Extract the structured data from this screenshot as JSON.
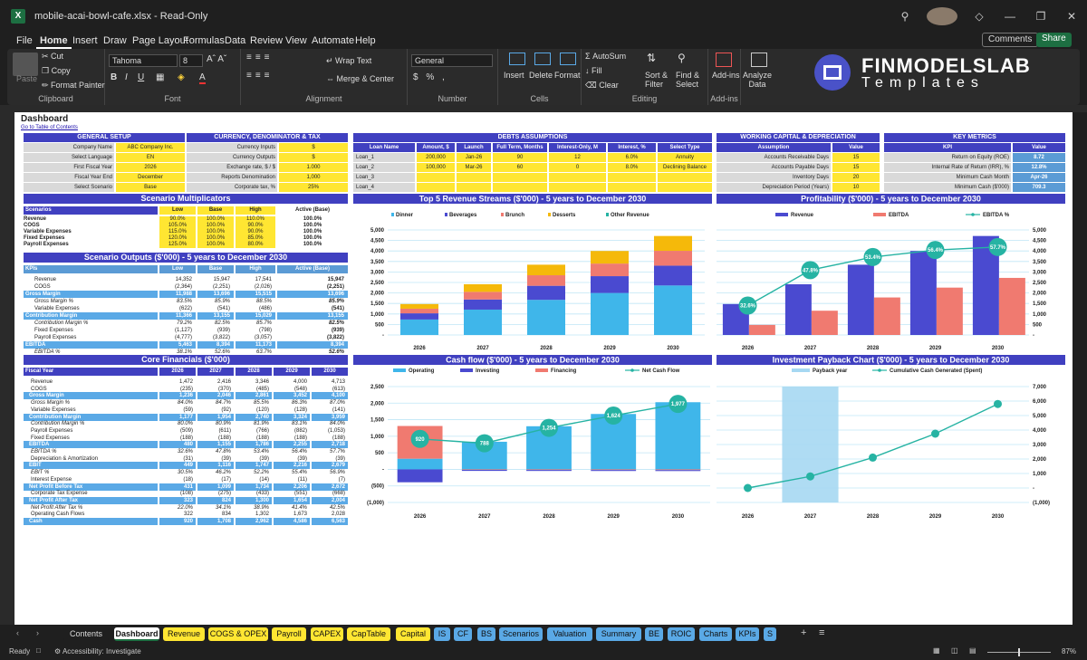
{
  "window": {
    "filename": "mobile-acai-bowl-cafe.xlsx",
    "mode": "Read-Only"
  },
  "menu": [
    "File",
    "Home",
    "Insert",
    "Draw",
    "Page Layout",
    "Formulas",
    "Data",
    "Review",
    "View",
    "Automate",
    "Help"
  ],
  "menu_right": {
    "comments": "Comments",
    "share": "Share"
  },
  "ribbon": {
    "paste": "Paste",
    "cut": "Cut",
    "copy": "Copy",
    "format_painter": "Format Painter",
    "clipboard": "Clipboard",
    "font_name": "Tahoma",
    "font_size": "8",
    "font": "Font",
    "wrap": "Wrap Text",
    "merge": "Merge & Center",
    "alignment": "Alignment",
    "numfmt": "General",
    "number": "Number",
    "insert": "Insert",
    "delete": "Delete",
    "format": "Format",
    "cells": "Cells",
    "autosum": "AutoSum",
    "fill": "Fill",
    "clear": "Clear",
    "sort": "Sort &",
    "filter": "Filter",
    "find": "Find &",
    "select": "Select",
    "editing": "Editing",
    "addins": "Add-ins",
    "addins_grp": "Add-ins",
    "analyze": "Analyze",
    "data": "Data"
  },
  "logo": {
    "line1": "FINMODELSLAB",
    "line2": "Templates"
  },
  "sheet": {
    "title": "Dashboard",
    "link": "Go to Table of Contents",
    "general": {
      "header": "GENERAL SETUP",
      "rows": [
        [
          "Company Name",
          "ABC Company Inc."
        ],
        [
          "Select Language",
          "EN"
        ],
        [
          "First Fiscal Year",
          "2026"
        ],
        [
          "Fiscal Year End",
          "December"
        ],
        [
          "Select Scenario",
          "Base"
        ]
      ]
    },
    "currency": {
      "header": "CURRENCY, DENOMINATOR & TAX",
      "rows": [
        [
          "Currency Inputs",
          "$"
        ],
        [
          "Currency Outputs",
          "$"
        ],
        [
          "Exchange rate, $ / $",
          "1.000"
        ],
        [
          "Reports Denomination",
          "1,000"
        ],
        [
          "Corporate tax, %",
          "25%"
        ]
      ]
    },
    "debts": {
      "header": "DEBTS ASSUMPTIONS",
      "cols": [
        "Loan Name",
        "Amount, $",
        "Launch",
        "Full Term, Months",
        "Interest-Only, M",
        "Interest, %",
        "Select Type"
      ],
      "rows": [
        [
          "Loan_1",
          "200,000",
          "Jan-26",
          "90",
          "12",
          "6.0%",
          "Annuity"
        ],
        [
          "Loan_2",
          "100,000",
          "Mar-26",
          "60",
          "0",
          "8.0%",
          "Declining Balance"
        ],
        [
          "Loan_3",
          "",
          "",
          "",
          "",
          "",
          ""
        ],
        [
          "Loan_4",
          "",
          "",
          "",
          "",
          "",
          ""
        ]
      ]
    },
    "wc": {
      "header": "WORKING CAPITAL & DEPRECIATION",
      "cols": [
        "Assumption",
        "Value"
      ],
      "rows": [
        [
          "Accounts Receivable Days",
          "15"
        ],
        [
          "Accounts Payable Days",
          "15"
        ],
        [
          "Inventory Days",
          "20"
        ],
        [
          "Depreciation Period (Years)",
          "10"
        ]
      ]
    },
    "metrics": {
      "header": "KEY METRICS",
      "cols": [
        "KPI",
        "Value"
      ],
      "rows": [
        [
          "Return on Equity (ROE)",
          "8.72"
        ],
        [
          "Internal Rate of Return (IRR), %",
          "12.8%"
        ],
        [
          "Minimum Cash Month",
          "Apr-26"
        ],
        [
          "Minimum Cash ($'000)",
          "709.3"
        ]
      ]
    },
    "multipliers": {
      "header": "Scenario Multiplicators",
      "cols": [
        "Scenarios",
        "Low",
        "Base",
        "High",
        "Active (Base)"
      ],
      "rows": [
        [
          "Revenue",
          "90.0%",
          "100.0%",
          "110.0%",
          "100.0%"
        ],
        [
          "COGS",
          "105.0%",
          "100.0%",
          "90.0%",
          "100.0%"
        ],
        [
          "Variable Expenses",
          "115.0%",
          "100.0%",
          "90.0%",
          "100.0%"
        ],
        [
          "Fixed Expenses",
          "120.0%",
          "100.0%",
          "85.0%",
          "100.0%"
        ],
        [
          "Payroll Expenses",
          "125.0%",
          "100.0%",
          "80.0%",
          "100.0%"
        ]
      ]
    },
    "outputs": {
      "header": "Scenario Outputs ($'000) - 5 years to December 2030",
      "cols": [
        "KPIs",
        "Low",
        "Base",
        "High",
        "Active (Base)"
      ],
      "rows": [
        {
          "v": [
            "Revenue",
            "14,352",
            "15,947",
            "17,541",
            "15,947"
          ],
          "s": "n"
        },
        {
          "v": [
            "COGS",
            "(2,364)",
            "(2,251)",
            "(2,026)",
            "(2,251)"
          ],
          "s": "n"
        },
        {
          "v": [
            "Gross Margin",
            "11,988",
            "13,696",
            "15,515",
            "13,696"
          ],
          "s": "b"
        },
        {
          "v": [
            "Gross Margin %",
            "83.5%",
            "85.9%",
            "88.5%",
            "85.9%"
          ],
          "s": "i"
        },
        {
          "v": [
            "Variable Expenses",
            "(622)",
            "(541)",
            "(486)",
            "(541)"
          ],
          "s": "n"
        },
        {
          "v": [
            "Contribution Margin",
            "11,366",
            "13,155",
            "15,029",
            "13,155"
          ],
          "s": "b"
        },
        {
          "v": [
            "Contribution Margin %",
            "79.2%",
            "82.5%",
            "85.7%",
            "82.5%"
          ],
          "s": "i"
        },
        {
          "v": [
            "Fixed Expenses",
            "(1,127)",
            "(939)",
            "(798)",
            "(939)"
          ],
          "s": "n"
        },
        {
          "v": [
            "Payroll Expenses",
            "(4,777)",
            "(3,822)",
            "(3,057)",
            "(3,822)"
          ],
          "s": "n"
        },
        {
          "v": [
            "EBITDA",
            "5,463",
            "8,394",
            "11,173",
            "8,394"
          ],
          "s": "b"
        },
        {
          "v": [
            "EBITDA %",
            "38.1%",
            "52.6%",
            "63.7%",
            "52.6%"
          ],
          "s": "i"
        }
      ]
    },
    "core": {
      "header": "Core Financials ($'000)",
      "cols": [
        "Fiscal Year",
        "2026",
        "2027",
        "2028",
        "2029",
        "2030"
      ],
      "rows": [
        {
          "v": [
            "Revenue",
            "1,472",
            "2,416",
            "3,346",
            "4,000",
            "4,713"
          ],
          "s": "n"
        },
        {
          "v": [
            "COGS",
            "(235)",
            "(370)",
            "(485)",
            "(548)",
            "(613)"
          ],
          "s": "n"
        },
        {
          "v": [
            "Gross Margin",
            "1,236",
            "2,046",
            "2,861",
            "3,452",
            "4,100"
          ],
          "s": "b"
        },
        {
          "v": [
            "Gross Margin %",
            "84.0%",
            "84.7%",
            "85.5%",
            "86.3%",
            "87.0%"
          ],
          "s": "i"
        },
        {
          "v": [
            "Variable Expenses",
            "(59)",
            "(92)",
            "(120)",
            "(128)",
            "(141)"
          ],
          "s": "n"
        },
        {
          "v": [
            "Contribution Margin",
            "1,177",
            "1,954",
            "2,740",
            "3,324",
            "3,959"
          ],
          "s": "b"
        },
        {
          "v": [
            "Contribution Margin %",
            "80.0%",
            "80.9%",
            "81.9%",
            "83.1%",
            "84.0%"
          ],
          "s": "i"
        },
        {
          "v": [
            "Payroll Expenses",
            "(509)",
            "(611)",
            "(766)",
            "(882)",
            "(1,053)"
          ],
          "s": "n"
        },
        {
          "v": [
            "Fixed Expenses",
            "(188)",
            "(188)",
            "(188)",
            "(188)",
            "(188)"
          ],
          "s": "n"
        },
        {
          "v": [
            "EBITDA",
            "480",
            "1,155",
            "1,786",
            "2,255",
            "2,718"
          ],
          "s": "b"
        },
        {
          "v": [
            "EBITDA %",
            "32.6%",
            "47.8%",
            "53.4%",
            "56.4%",
            "57.7%"
          ],
          "s": "i"
        },
        {
          "v": [
            "Depreciation & Amortization",
            "(31)",
            "(39)",
            "(39)",
            "(39)",
            "(39)"
          ],
          "s": "n"
        },
        {
          "v": [
            "EBIT",
            "449",
            "1,116",
            "1,747",
            "2,216",
            "2,679"
          ],
          "s": "b"
        },
        {
          "v": [
            "EBIT %",
            "30.5%",
            "46.2%",
            "52.2%",
            "55.4%",
            "56.9%"
          ],
          "s": "i"
        },
        {
          "v": [
            "Interest Expense",
            "(18)",
            "(17)",
            "(14)",
            "(11)",
            "(7)"
          ],
          "s": "n"
        },
        {
          "v": [
            "Net Profit Before Tax",
            "431",
            "1,099",
            "1,734",
            "2,206",
            "2,672"
          ],
          "s": "b"
        },
        {
          "v": [
            "Corporate Tax Expense",
            "(108)",
            "(275)",
            "(433)",
            "(551)",
            "(668)"
          ],
          "s": "n"
        },
        {
          "v": [
            "Net Profit After Tax",
            "323",
            "824",
            "1,300",
            "1,654",
            "2,004"
          ],
          "s": "b"
        },
        {
          "v": [
            "Net Profit After Tax %",
            "22.0%",
            "34.1%",
            "38.9%",
            "41.4%",
            "42.5%"
          ],
          "s": "i"
        },
        {
          "v": [
            "Operating Cash Flows",
            "322",
            "834",
            "1,302",
            "1,673",
            "2,028"
          ],
          "s": "n"
        },
        {
          "v": [
            "Cash",
            "920",
            "1,708",
            "2,962",
            "4,586",
            "6,563"
          ],
          "s": "b"
        }
      ]
    }
  },
  "chart_data": [
    {
      "type": "bar",
      "title": "Top 5 Revenue Streams ($'000) - 5 years to December 2030",
      "categories": [
        "2026",
        "2027",
        "2028",
        "2029",
        "2030"
      ],
      "series": [
        {
          "name": "Dinner",
          "values": [
            736,
            1208,
            1673,
            2000,
            2357
          ],
          "color": "#3fb6ea"
        },
        {
          "name": "Beverages",
          "values": [
            295,
            483,
            669,
            800,
            943
          ],
          "color": "#4a4ad0"
        },
        {
          "name": "Brunch",
          "values": [
            221,
            362,
            502,
            600,
            707
          ],
          "color": "#f07a70"
        },
        {
          "name": "Desserts",
          "values": [
            221,
            363,
            502,
            600,
            706
          ],
          "color": "#f5b90a"
        },
        {
          "name": "Other Revenue",
          "values": [
            0,
            0,
            0,
            0,
            0
          ],
          "color": "#26b3a3"
        }
      ],
      "yticks": [
        "5,000",
        "4,500",
        "4,000",
        "3,500",
        "3,000",
        "2,500",
        "2,000",
        "1,500",
        "1,000",
        "500",
        "-"
      ],
      "ylim": [
        0,
        5000
      ]
    },
    {
      "type": "bar",
      "title": "Profitability ($'000) - 5 years to December 2030",
      "categories": [
        "2026",
        "2027",
        "2028",
        "2029",
        "2030"
      ],
      "series": [
        {
          "name": "Revenue",
          "values": [
            1472,
            2416,
            3346,
            4000,
            4713
          ],
          "color": "#4a4ad0"
        },
        {
          "name": "EBITDA",
          "values": [
            480,
            1155,
            1786,
            2255,
            2718
          ],
          "color": "#f07a70"
        },
        {
          "name": "EBITDA %",
          "values": [
            32.6,
            47.8,
            53.4,
            56.4,
            57.7
          ],
          "labels": [
            "32.6%",
            "47.8%",
            "53.4%",
            "56.4%",
            "57.7%"
          ],
          "color": "#26b3a3"
        }
      ],
      "yticks": [
        "5,000",
        "4,500",
        "4,000",
        "3,500",
        "3,000",
        "2,500",
        "2,000",
        "1,500",
        "1,000",
        "500",
        "-"
      ],
      "ylim": [
        0,
        5000
      ]
    },
    {
      "type": "bar",
      "title": "Cash flow ($'000) - 5 years to December 2030",
      "categories": [
        "2026",
        "2027",
        "2028",
        "2029",
        "2030"
      ],
      "series": [
        {
          "name": "Operating",
          "values": [
            322,
            834,
            1302,
            1673,
            2028
          ],
          "color": "#3fb6ea"
        },
        {
          "name": "Investing",
          "values": [
            -390,
            -30,
            -30,
            -30,
            -30
          ],
          "color": "#4a4ad0"
        },
        {
          "name": "Financing",
          "values": [
            988,
            -16,
            -18,
            -19,
            -21
          ],
          "color": "#f07a70"
        },
        {
          "name": "Net Cash Flow",
          "values": [
            920,
            788,
            1254,
            1624,
            1977
          ],
          "labels": [
            "920",
            "788",
            "1,254",
            "1,624",
            "1,977"
          ],
          "color": "#26b3a3"
        }
      ],
      "yticks": [
        "2,500",
        "2,000",
        "1,500",
        "1,000",
        "500",
        "-",
        "(500)",
        "(1,000)"
      ],
      "ylim": [
        -1000,
        2500
      ]
    },
    {
      "type": "bar",
      "title": "Investment Payback Chart ($'000) - 5 years to December 2030",
      "categories": [
        "2026",
        "2027",
        "2028",
        "2029",
        "2030"
      ],
      "series": [
        {
          "name": "Payback year",
          "values": [
            0,
            1,
            0,
            0,
            0
          ],
          "color": "#a6d8f2"
        },
        {
          "name": "Cumulative Cash Generated (Spent)",
          "values": [
            0,
            800,
            2100,
            3750,
            5800
          ],
          "color": "#26b3a3"
        }
      ],
      "yticks": [
        "7,000",
        "6,000",
        "5,000",
        "4,000",
        "3,000",
        "2,000",
        "1,000",
        "-",
        "(1,000)"
      ],
      "ylim": [
        -1000,
        7000
      ]
    }
  ],
  "tabs": [
    {
      "label": "Contents",
      "color": "#1f1f1f",
      "fg": "#ddd"
    },
    {
      "label": "Dashboard",
      "color": "#ffffff",
      "fg": "#111"
    },
    {
      "label": "Revenue",
      "color": "#ffe632",
      "fg": "#111"
    },
    {
      "label": "COGS & OPEX",
      "color": "#ffe632",
      "fg": "#111"
    },
    {
      "label": "Payroll",
      "color": "#ffe632",
      "fg": "#111"
    },
    {
      "label": "CAPEX",
      "color": "#ffe632",
      "fg": "#111"
    },
    {
      "label": "CapTable",
      "color": "#ffe632",
      "fg": "#111"
    },
    {
      "label": "Capital",
      "color": "#ffe632",
      "fg": "#111"
    },
    {
      "label": "IS",
      "color": "#5aa9e6",
      "fg": "#111"
    },
    {
      "label": "CF",
      "color": "#5aa9e6",
      "fg": "#111"
    },
    {
      "label": "BS",
      "color": "#5aa9e6",
      "fg": "#111"
    },
    {
      "label": "Scenarios",
      "color": "#5aa9e6",
      "fg": "#111"
    },
    {
      "label": "Valuation",
      "color": "#5aa9e6",
      "fg": "#111"
    },
    {
      "label": "Summary",
      "color": "#5aa9e6",
      "fg": "#111"
    },
    {
      "label": "BE",
      "color": "#5aa9e6",
      "fg": "#111"
    },
    {
      "label": "ROIC",
      "color": "#5aa9e6",
      "fg": "#111"
    },
    {
      "label": "Charts",
      "color": "#5aa9e6",
      "fg": "#111"
    },
    {
      "label": "KPIs",
      "color": "#5aa9e6",
      "fg": "#111"
    },
    {
      "label": "S",
      "color": "#5aa9e6",
      "fg": "#111"
    }
  ],
  "status": {
    "ready": "Ready",
    "accessibility": "Accessibility: Investigate",
    "zoom": "87%"
  }
}
